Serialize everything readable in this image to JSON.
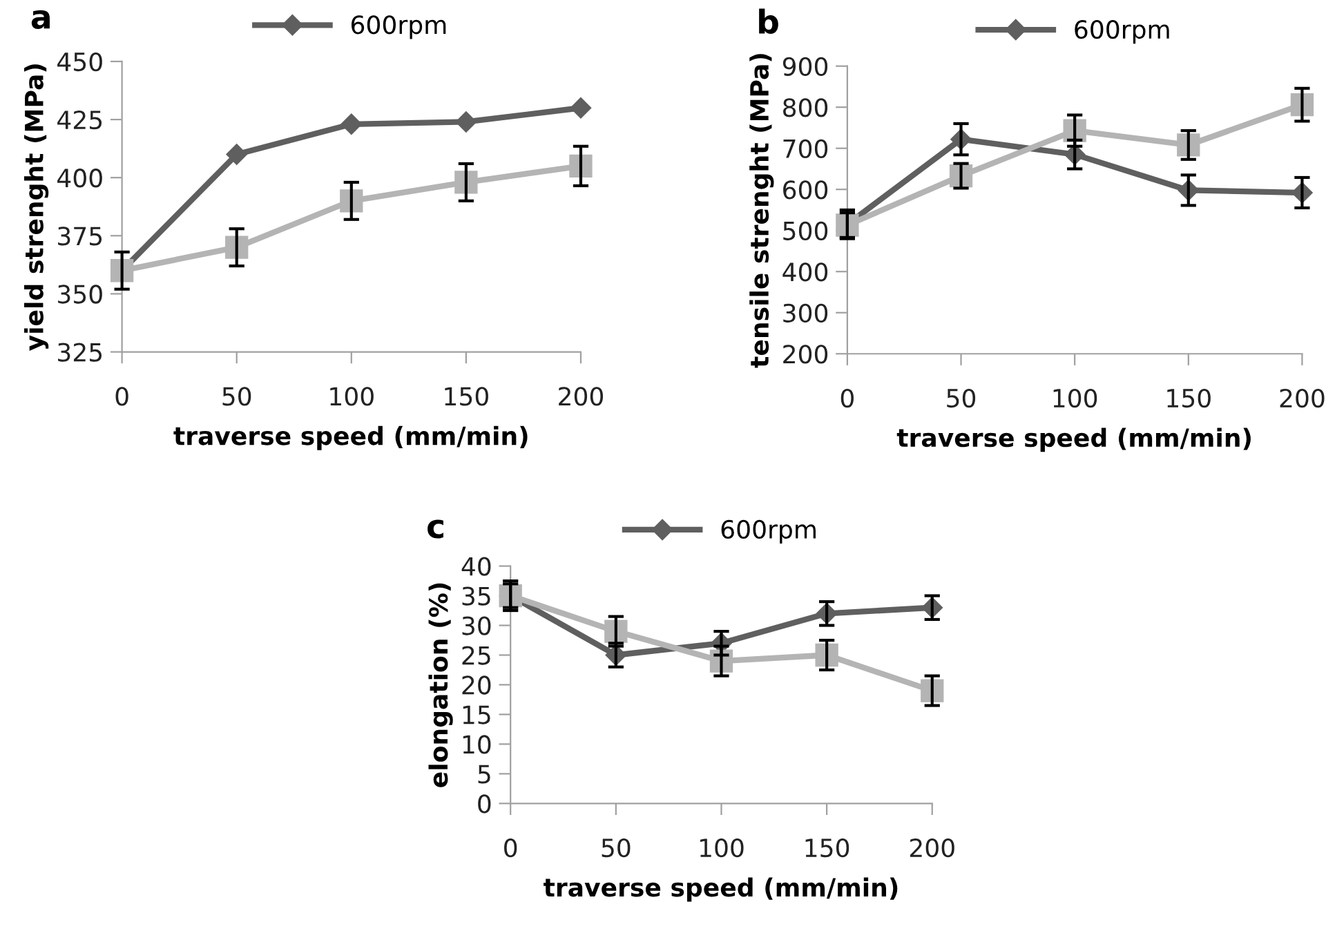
{
  "chart_data": [
    {
      "type": "line",
      "title": "a",
      "xlabel": "traverse speed (mm/min)",
      "ylabel": "yield strenght (MPa)",
      "categories": [
        "0",
        "50",
        "100",
        "150",
        "200"
      ],
      "ylim": [
        325,
        450
      ],
      "yticks": [
        325,
        350,
        375,
        400,
        425,
        450
      ],
      "grid": false,
      "legend": "top",
      "series": [
        {
          "name": "600rpm",
          "color": "#5f5f5f",
          "marker": "diamond",
          "values": [
            360,
            410,
            423,
            424,
            430
          ]
        },
        {
          "color": "#b4b4b4",
          "marker": "square",
          "values": [
            360,
            370,
            390,
            398,
            405
          ],
          "errors": [
            8,
            8,
            8,
            8,
            8.5
          ]
        }
      ]
    },
    {
      "type": "line",
      "title": "b",
      "xlabel": "traverse speed (mm/min)",
      "ylabel": "tensile strenght (MPa)",
      "categories": [
        "0",
        "50",
        "100",
        "150",
        "200"
      ],
      "ylim": [
        200,
        900
      ],
      "yticks": [
        200,
        300,
        400,
        500,
        600,
        700,
        800,
        900
      ],
      "grid": false,
      "legend": "top",
      "series": [
        {
          "name": "600rpm",
          "color": "#5f5f5f",
          "marker": "diamond",
          "values": [
            515,
            722,
            685,
            598,
            592
          ],
          "errors": [
            35,
            38,
            35,
            37,
            37
          ]
        },
        {
          "color": "#b4b4b4",
          "marker": "square",
          "values": [
            513,
            633,
            743,
            708,
            806
          ],
          "errors": [
            30,
            30,
            38,
            35,
            40
          ]
        }
      ]
    },
    {
      "type": "line",
      "title": "c",
      "xlabel": "traverse speed (mm/min)",
      "ylabel": "elongation (%)",
      "categories": [
        "0",
        "50",
        "100",
        "150",
        "200"
      ],
      "ylim": [
        0,
        40
      ],
      "yticks": [
        0,
        5,
        10,
        15,
        20,
        25,
        30,
        35,
        40
      ],
      "grid": false,
      "legend": "top",
      "series": [
        {
          "name": "600rpm",
          "color": "#5f5f5f",
          "marker": "diamond",
          "values": [
            35,
            25,
            27,
            32,
            33
          ],
          "errors": [
            2,
            2,
            2,
            2,
            2
          ]
        },
        {
          "color": "#b4b4b4",
          "marker": "square",
          "values": [
            35,
            29,
            24,
            25,
            19
          ],
          "errors": [
            2.5,
            2.5,
            2.5,
            2.5,
            2.5
          ]
        }
      ]
    }
  ]
}
